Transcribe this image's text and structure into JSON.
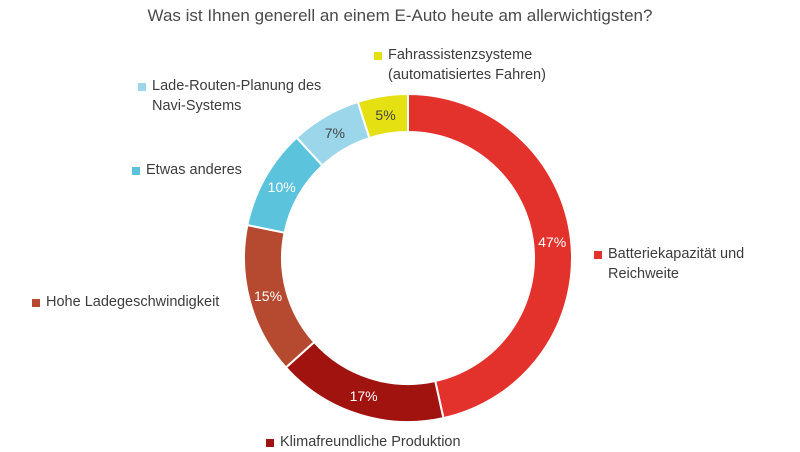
{
  "chart_data": {
    "type": "pie",
    "title": "Was ist Ihnen generell an einem E-Auto heute am allerwichtigsten?",
    "unit": "%",
    "slices": [
      {
        "label_lines": [
          "Batteriekapazität und",
          "Reichweite"
        ],
        "value": 47,
        "value_label": "47%",
        "color": "#e3312b"
      },
      {
        "label_lines": [
          "Klimafreundliche Produktion"
        ],
        "value": 17,
        "value_label": "17%",
        "color": "#a0130f"
      },
      {
        "label_lines": [
          "Hohe Ladegeschwindigkeit"
        ],
        "value": 15,
        "value_label": "15%",
        "color": "#b54a30"
      },
      {
        "label_lines": [
          "Etwas anderes"
        ],
        "value": 10,
        "value_label": "10%",
        "color": "#5bc3dc"
      },
      {
        "label_lines": [
          "Lade-Routen-Planung des",
          "Navi-Systems"
        ],
        "value": 7,
        "value_label": "7%",
        "color": "#9bd6ea"
      },
      {
        "label_lines": [
          "Fahrassistenzsysteme",
          "(automatisiertes Fahren)"
        ],
        "value": 5,
        "value_label": "5%",
        "color": "#e4e012"
      }
    ],
    "legend_placement": "around"
  }
}
